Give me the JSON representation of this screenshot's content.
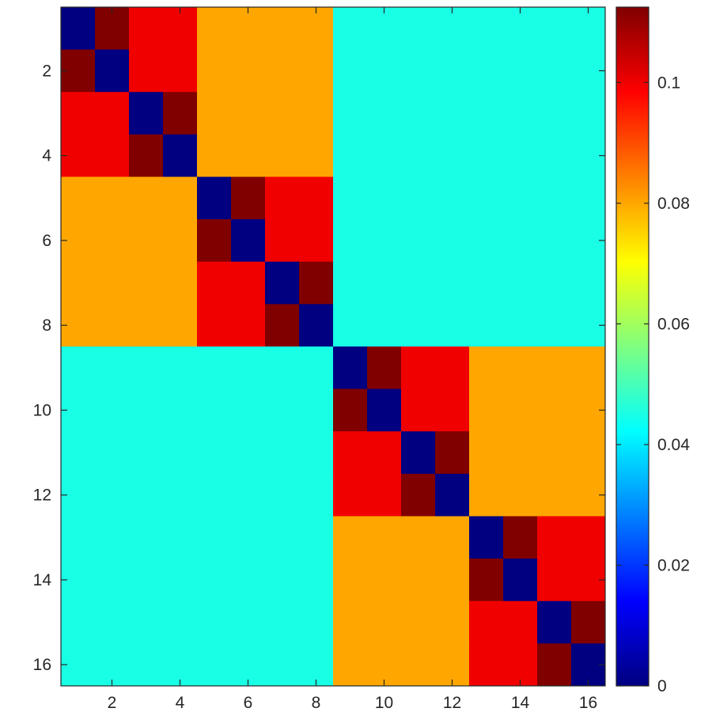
{
  "chart_data": {
    "type": "heatmap",
    "title": "",
    "xlabel": "",
    "ylabel": "",
    "grid": false,
    "colormap": "jet",
    "x": [
      1,
      2,
      3,
      4,
      5,
      6,
      7,
      8,
      9,
      10,
      11,
      12,
      13,
      14,
      15,
      16
    ],
    "y": [
      1,
      2,
      3,
      4,
      5,
      6,
      7,
      8,
      9,
      10,
      11,
      12,
      13,
      14,
      15,
      16
    ],
    "xlim": [
      0.5,
      16.5
    ],
    "ylim": [
      0.5,
      16.5
    ],
    "y_direction": "top-to-bottom",
    "x_ticks": [
      2,
      4,
      6,
      8,
      10,
      12,
      14,
      16
    ],
    "y_ticks": [
      2,
      4,
      6,
      8,
      10,
      12,
      14,
      16
    ],
    "colorbar": {
      "location": "right",
      "limits": [
        0,
        0.1125
      ],
      "ticks": [
        0,
        0.02,
        0.04,
        0.06,
        0.08,
        0.1
      ],
      "tick_labels": [
        "0",
        "0.02",
        "0.04",
        "0.06",
        "0.08",
        "0.1"
      ]
    },
    "block_values": {
      "diagonal": 0,
      "same_pair": 0.1125,
      "same_group_of_4": 0.1,
      "same_group_of_8": 0.08,
      "different_half": 0.045
    },
    "values": [
      [
        0,
        0.1125,
        0.1,
        0.1,
        0.08,
        0.08,
        0.08,
        0.08,
        0.045,
        0.045,
        0.045,
        0.045,
        0.045,
        0.045,
        0.045,
        0.045
      ],
      [
        0.1125,
        0,
        0.1,
        0.1,
        0.08,
        0.08,
        0.08,
        0.08,
        0.045,
        0.045,
        0.045,
        0.045,
        0.045,
        0.045,
        0.045,
        0.045
      ],
      [
        0.1,
        0.1,
        0,
        0.1125,
        0.08,
        0.08,
        0.08,
        0.08,
        0.045,
        0.045,
        0.045,
        0.045,
        0.045,
        0.045,
        0.045,
        0.045
      ],
      [
        0.1,
        0.1,
        0.1125,
        0,
        0.08,
        0.08,
        0.08,
        0.08,
        0.045,
        0.045,
        0.045,
        0.045,
        0.045,
        0.045,
        0.045,
        0.045
      ],
      [
        0.08,
        0.08,
        0.08,
        0.08,
        0,
        0.1125,
        0.1,
        0.1,
        0.045,
        0.045,
        0.045,
        0.045,
        0.045,
        0.045,
        0.045,
        0.045
      ],
      [
        0.08,
        0.08,
        0.08,
        0.08,
        0.1125,
        0,
        0.1,
        0.1,
        0.045,
        0.045,
        0.045,
        0.045,
        0.045,
        0.045,
        0.045,
        0.045
      ],
      [
        0.08,
        0.08,
        0.08,
        0.08,
        0.1,
        0.1,
        0,
        0.1125,
        0.045,
        0.045,
        0.045,
        0.045,
        0.045,
        0.045,
        0.045,
        0.045
      ],
      [
        0.08,
        0.08,
        0.08,
        0.08,
        0.1,
        0.1,
        0.1125,
        0,
        0.045,
        0.045,
        0.045,
        0.045,
        0.045,
        0.045,
        0.045,
        0.045
      ],
      [
        0.045,
        0.045,
        0.045,
        0.045,
        0.045,
        0.045,
        0.045,
        0.045,
        0,
        0.1125,
        0.1,
        0.1,
        0.08,
        0.08,
        0.08,
        0.08
      ],
      [
        0.045,
        0.045,
        0.045,
        0.045,
        0.045,
        0.045,
        0.045,
        0.045,
        0.1125,
        0,
        0.1,
        0.1,
        0.08,
        0.08,
        0.08,
        0.08
      ],
      [
        0.045,
        0.045,
        0.045,
        0.045,
        0.045,
        0.045,
        0.045,
        0.045,
        0.1,
        0.1,
        0,
        0.1125,
        0.08,
        0.08,
        0.08,
        0.08
      ],
      [
        0.045,
        0.045,
        0.045,
        0.045,
        0.045,
        0.045,
        0.045,
        0.045,
        0.1,
        0.1,
        0.1125,
        0,
        0.08,
        0.08,
        0.08,
        0.08
      ],
      [
        0.045,
        0.045,
        0.045,
        0.045,
        0.045,
        0.045,
        0.045,
        0.045,
        0.08,
        0.08,
        0.08,
        0.08,
        0,
        0.1125,
        0.1,
        0.1
      ],
      [
        0.045,
        0.045,
        0.045,
        0.045,
        0.045,
        0.045,
        0.045,
        0.045,
        0.08,
        0.08,
        0.08,
        0.08,
        0.1125,
        0,
        0.1,
        0.1
      ],
      [
        0.045,
        0.045,
        0.045,
        0.045,
        0.045,
        0.045,
        0.045,
        0.045,
        0.08,
        0.08,
        0.08,
        0.08,
        0.1,
        0.1,
        0,
        0.1125
      ],
      [
        0.045,
        0.045,
        0.045,
        0.045,
        0.045,
        0.045,
        0.045,
        0.045,
        0.08,
        0.08,
        0.08,
        0.08,
        0.1,
        0.1,
        0.1125,
        0
      ]
    ]
  }
}
